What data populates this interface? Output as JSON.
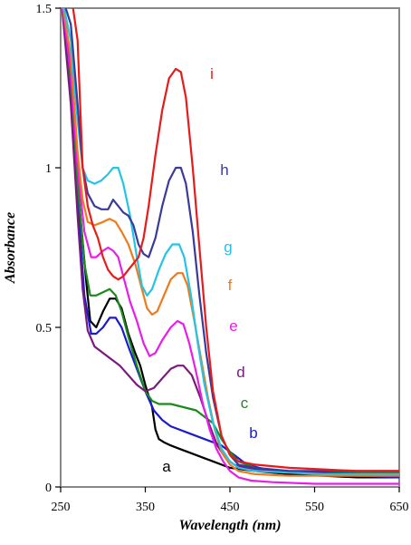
{
  "chart_data": {
    "type": "line",
    "xlabel": "Wavelength (nm)",
    "ylabel": "Absorbance",
    "xlim": [
      250,
      650
    ],
    "ylim": [
      0,
      1.5
    ],
    "x_ticks": [
      "250",
      "350",
      "450",
      "550",
      "650"
    ],
    "y_ticks": [
      "0",
      "0.5",
      "1",
      "1.5"
    ],
    "grid": false,
    "series": [
      {
        "name": "a",
        "color": "#000000",
        "x": [
          250,
          262,
          270,
          280,
          285,
          292,
          300,
          308,
          315,
          322,
          330,
          338,
          344,
          350,
          358,
          362,
          366,
          372,
          380,
          390,
          400,
          410,
          420,
          430,
          450,
          480,
          520,
          560,
          600,
          650
        ],
        "y": [
          1.55,
          1.3,
          0.95,
          0.65,
          0.52,
          0.5,
          0.55,
          0.59,
          0.59,
          0.56,
          0.48,
          0.42,
          0.38,
          0.32,
          0.25,
          0.18,
          0.15,
          0.14,
          0.13,
          0.12,
          0.11,
          0.1,
          0.09,
          0.08,
          0.06,
          0.05,
          0.04,
          0.035,
          0.03,
          0.03
        ]
      },
      {
        "name": "b",
        "color": "#1a1ad1",
        "x": [
          250,
          262,
          270,
          278,
          286,
          292,
          300,
          308,
          315,
          322,
          330,
          340,
          350,
          360,
          370,
          380,
          390,
          400,
          410,
          420,
          430,
          440,
          450,
          460,
          470,
          500,
          550,
          600,
          650
        ],
        "y": [
          1.55,
          1.3,
          0.9,
          0.6,
          0.48,
          0.48,
          0.5,
          0.53,
          0.53,
          0.5,
          0.44,
          0.37,
          0.3,
          0.24,
          0.21,
          0.19,
          0.18,
          0.17,
          0.16,
          0.15,
          0.14,
          0.13,
          0.11,
          0.09,
          0.07,
          0.05,
          0.04,
          0.035,
          0.03
        ]
      },
      {
        "name": "c",
        "color": "#1a8a1a",
        "x": [
          250,
          262,
          270,
          278,
          285,
          292,
          300,
          308,
          315,
          322,
          330,
          340,
          350,
          358,
          366,
          380,
          395,
          410,
          420,
          430,
          440,
          450,
          460,
          480,
          500,
          550,
          600,
          650
        ],
        "y": [
          1.55,
          1.25,
          0.95,
          0.7,
          0.6,
          0.6,
          0.61,
          0.62,
          0.6,
          0.55,
          0.47,
          0.38,
          0.3,
          0.27,
          0.26,
          0.26,
          0.25,
          0.24,
          0.22,
          0.2,
          0.15,
          0.11,
          0.08,
          0.06,
          0.05,
          0.045,
          0.045,
          0.045
        ]
      },
      {
        "name": "d",
        "color": "#7a1a7a",
        "x": [
          250,
          262,
          270,
          276,
          282,
          290,
          300,
          310,
          320,
          330,
          340,
          350,
          360,
          370,
          380,
          388,
          395,
          405,
          415,
          425,
          435,
          445,
          455,
          470,
          500,
          550,
          600,
          650
        ],
        "y": [
          1.55,
          1.2,
          0.85,
          0.62,
          0.49,
          0.44,
          0.42,
          0.4,
          0.38,
          0.35,
          0.32,
          0.3,
          0.31,
          0.34,
          0.37,
          0.38,
          0.38,
          0.35,
          0.28,
          0.2,
          0.13,
          0.09,
          0.07,
          0.06,
          0.05,
          0.045,
          0.04,
          0.04
        ]
      },
      {
        "name": "e",
        "color": "#e81ee8",
        "x": [
          250,
          262,
          270,
          278,
          286,
          292,
          300,
          306,
          312,
          318,
          325,
          332,
          340,
          348,
          355,
          362,
          370,
          380,
          388,
          395,
          402,
          410,
          418,
          426,
          434,
          442,
          450,
          460,
          475,
          500,
          550,
          600,
          650
        ],
        "y": [
          1.55,
          1.3,
          1.0,
          0.8,
          0.72,
          0.72,
          0.74,
          0.75,
          0.74,
          0.72,
          0.65,
          0.58,
          0.52,
          0.45,
          0.41,
          0.42,
          0.46,
          0.5,
          0.52,
          0.51,
          0.45,
          0.36,
          0.26,
          0.18,
          0.12,
          0.08,
          0.05,
          0.03,
          0.02,
          0.015,
          0.01,
          0.01,
          0.01
        ]
      },
      {
        "name": "f",
        "color": "#f07a1a",
        "x": [
          250,
          262,
          270,
          276,
          282,
          290,
          300,
          308,
          315,
          322,
          330,
          338,
          345,
          352,
          358,
          364,
          372,
          380,
          388,
          394,
          400,
          408,
          416,
          424,
          432,
          440,
          450,
          460,
          480,
          520,
          560,
          600,
          650
        ],
        "y": [
          1.55,
          1.35,
          1.05,
          0.9,
          0.83,
          0.82,
          0.83,
          0.84,
          0.83,
          0.8,
          0.76,
          0.7,
          0.63,
          0.56,
          0.54,
          0.55,
          0.6,
          0.65,
          0.67,
          0.67,
          0.63,
          0.52,
          0.4,
          0.28,
          0.18,
          0.11,
          0.07,
          0.05,
          0.04,
          0.035,
          0.035,
          0.035,
          0.035
        ]
      },
      {
        "name": "g",
        "color": "#22c4e8",
        "x": [
          250,
          262,
          270,
          276,
          282,
          290,
          298,
          306,
          312,
          318,
          324,
          332,
          340,
          346,
          352,
          358,
          366,
          374,
          382,
          390,
          396,
          404,
          412,
          420,
          430,
          440,
          450,
          460,
          480,
          520,
          560,
          600,
          650
        ],
        "y": [
          1.55,
          1.4,
          1.15,
          1.0,
          0.96,
          0.95,
          0.96,
          0.98,
          1.0,
          1.0,
          0.95,
          0.85,
          0.72,
          0.63,
          0.6,
          0.62,
          0.68,
          0.73,
          0.76,
          0.76,
          0.72,
          0.6,
          0.45,
          0.32,
          0.2,
          0.12,
          0.08,
          0.06,
          0.05,
          0.045,
          0.04,
          0.04,
          0.04
        ]
      },
      {
        "name": "h",
        "color": "#3a3a9a",
        "x": [
          250,
          262,
          270,
          276,
          282,
          290,
          298,
          306,
          312,
          318,
          324,
          330,
          336,
          342,
          348,
          354,
          362,
          370,
          378,
          386,
          392,
          398,
          406,
          414,
          422,
          430,
          440,
          450,
          460,
          480,
          520,
          560,
          600,
          650
        ],
        "y": [
          1.55,
          1.45,
          1.2,
          1.0,
          0.92,
          0.88,
          0.87,
          0.87,
          0.9,
          0.88,
          0.86,
          0.85,
          0.82,
          0.76,
          0.73,
          0.72,
          0.78,
          0.88,
          0.96,
          1.0,
          1.0,
          0.95,
          0.8,
          0.6,
          0.42,
          0.28,
          0.16,
          0.1,
          0.07,
          0.06,
          0.05,
          0.05,
          0.05,
          0.05
        ]
      },
      {
        "name": "i",
        "color": "#e81a1a",
        "x": [
          250,
          262,
          270,
          276,
          282,
          288,
          294,
          300,
          306,
          312,
          318,
          324,
          330,
          336,
          342,
          348,
          354,
          362,
          370,
          378,
          386,
          392,
          398,
          406,
          414,
          422,
          430,
          440,
          450,
          460,
          480,
          520,
          560,
          600,
          650
        ],
        "y": [
          1.55,
          1.55,
          1.4,
          1.0,
          0.88,
          0.82,
          0.78,
          0.72,
          0.68,
          0.66,
          0.65,
          0.66,
          0.68,
          0.7,
          0.72,
          0.78,
          0.88,
          1.04,
          1.18,
          1.28,
          1.31,
          1.3,
          1.22,
          1.0,
          0.75,
          0.5,
          0.3,
          0.16,
          0.1,
          0.08,
          0.07,
          0.06,
          0.055,
          0.05,
          0.05
        ]
      }
    ]
  }
}
